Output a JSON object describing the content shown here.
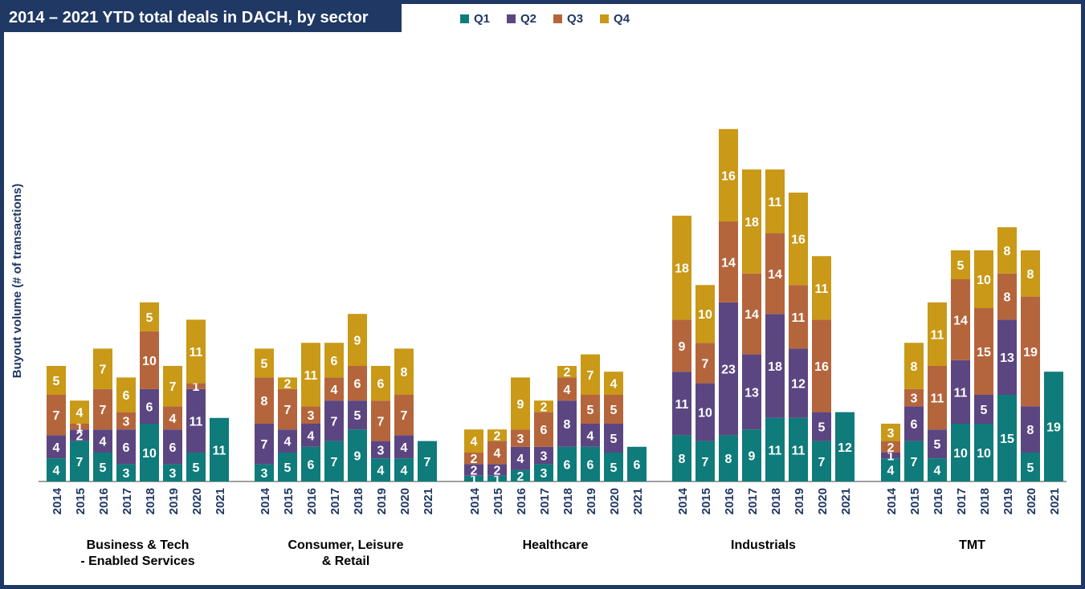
{
  "title": "2014 – 2021 YTD total deals in DACH, by sector",
  "legend": [
    {
      "name": "Q1",
      "color": "#0f7b7a"
    },
    {
      "name": "Q2",
      "color": "#5b4681"
    },
    {
      "name": "Q3",
      "color": "#b5653c"
    },
    {
      "name": "Q4",
      "color": "#c99917"
    }
  ],
  "chart_data": {
    "type": "bar",
    "stacked": true,
    "ylabel": "Buyout volume (# of transactions)",
    "years": [
      "2014",
      "2015",
      "2016",
      "2017",
      "2018",
      "2019",
      "2020",
      "2021"
    ],
    "series_names": [
      "Q1",
      "Q2",
      "Q3",
      "Q4"
    ],
    "groups": [
      {
        "sector": [
          "Business & Tech",
          "- Enabled Services"
        ],
        "bars": [
          [
            4,
            4,
            7,
            5
          ],
          [
            7,
            2,
            1,
            4
          ],
          [
            5,
            4,
            7,
            7
          ],
          [
            3,
            6,
            3,
            6
          ],
          [
            10,
            6,
            10,
            5
          ],
          [
            3,
            6,
            4,
            7
          ],
          [
            5,
            11,
            1,
            11
          ],
          [
            11
          ]
        ]
      },
      {
        "sector": [
          "Consumer, Leisure",
          "& Retail"
        ],
        "bars": [
          [
            3,
            7,
            8,
            5
          ],
          [
            5,
            4,
            7,
            2
          ],
          [
            6,
            4,
            3,
            11
          ],
          [
            7,
            7,
            4,
            6
          ],
          [
            9,
            5,
            6,
            9
          ],
          [
            4,
            3,
            7,
            6
          ],
          [
            4,
            4,
            7,
            8
          ],
          [
            7
          ]
        ]
      },
      {
        "sector": [
          "Healthcare"
        ],
        "bars": [
          [
            1,
            2,
            2,
            4
          ],
          [
            1,
            2,
            4,
            2
          ],
          [
            2,
            4,
            3,
            9
          ],
          [
            3,
            3,
            6,
            2
          ],
          [
            6,
            8,
            4,
            2
          ],
          [
            6,
            4,
            5,
            7
          ],
          [
            5,
            5,
            5,
            4
          ],
          [
            6
          ]
        ]
      },
      {
        "sector": [
          "Industrials"
        ],
        "bars": [
          [
            8,
            11,
            9,
            18
          ],
          [
            7,
            10,
            7,
            10
          ],
          [
            8,
            23,
            14,
            16
          ],
          [
            9,
            13,
            14,
            18
          ],
          [
            11,
            18,
            14,
            11
          ],
          [
            11,
            12,
            11,
            16
          ],
          [
            7,
            5,
            16,
            11
          ],
          [
            12
          ]
        ]
      },
      {
        "sector": [
          "TMT"
        ],
        "bars": [
          [
            4,
            1,
            2,
            3
          ],
          [
            7,
            6,
            3,
            8
          ],
          [
            4,
            5,
            11,
            11
          ],
          [
            10,
            11,
            14,
            5
          ],
          [
            10,
            5,
            15,
            10
          ],
          [
            15,
            13,
            8,
            8
          ],
          [
            5,
            8,
            19,
            8
          ],
          [
            19
          ]
        ]
      }
    ]
  }
}
